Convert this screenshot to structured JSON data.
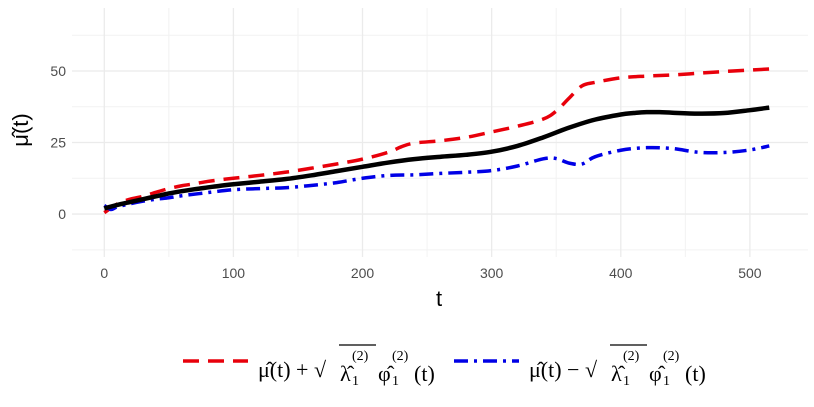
{
  "chart_data": {
    "type": "line",
    "xlabel": "t",
    "ylabel": "μ̂(t)",
    "xlim": [
      -25,
      545
    ],
    "ylim": [
      -15,
      72
    ],
    "x_ticks": [
      0,
      100,
      200,
      300,
      400,
      500
    ],
    "y_ticks": [
      0,
      25,
      50
    ],
    "grid": true,
    "legend_position": "bottom",
    "series": [
      {
        "key": "mean",
        "color": "#000000",
        "style": "solid",
        "x": [
          0,
          10,
          20,
          30,
          40,
          50,
          60,
          70,
          80,
          90,
          100,
          120,
          140,
          160,
          180,
          200,
          220,
          240,
          260,
          280,
          300,
          320,
          340,
          360,
          380,
          400,
          410,
          420,
          430,
          440,
          460,
          480,
          500,
          515
        ],
        "y": [
          2,
          3.2,
          4.2,
          5.2,
          6.2,
          7.2,
          8,
          8.7,
          9.3,
          9.9,
          10.4,
          11.3,
          12.2,
          13.5,
          15,
          16.5,
          18,
          19.2,
          20,
          20.7,
          21.8,
          23.8,
          26.8,
          30.2,
          33,
          34.8,
          35.3,
          35.6,
          35.6,
          35.4,
          35.1,
          35.3,
          36.3,
          37.2
        ]
      },
      {
        "key": "upper",
        "color": "#e8000b",
        "style": "dashed",
        "legend_main": "μ̂(t) + √",
        "legend_lambda": "λ̂",
        "legend_lambda_sub": "1",
        "legend_lambda_sup": "(2)",
        "legend_phi": "φ̂",
        "legend_phi_sub": "1",
        "legend_phi_sup": "(2)",
        "legend_tail": "(t)",
        "x": [
          0,
          10,
          20,
          30,
          40,
          50,
          60,
          70,
          80,
          90,
          100,
          120,
          140,
          160,
          180,
          200,
          220,
          230,
          240,
          260,
          280,
          300,
          320,
          340,
          350,
          360,
          370,
          380,
          400,
          420,
          440,
          460,
          480,
          500,
          515
        ],
        "y": [
          0.5,
          3.5,
          5.2,
          6.2,
          7.6,
          8.9,
          9.9,
          10.6,
          11.4,
          12,
          12.5,
          13.5,
          14.6,
          16,
          17.5,
          19.2,
          21.6,
          23.5,
          24.8,
          25.6,
          26.8,
          28.7,
          30.7,
          33.2,
          36,
          40.5,
          44.8,
          46,
          47.6,
          48.2,
          48.6,
          49.2,
          49.8,
          50.3,
          50.7
        ]
      },
      {
        "key": "lower",
        "color": "#0000e6",
        "style": "dashdot",
        "legend_main": "μ̂(t) − √",
        "legend_lambda": "λ̂",
        "legend_lambda_sub": "1",
        "legend_lambda_sup": "(2)",
        "legend_phi": "φ̂",
        "legend_phi_sub": "1",
        "legend_phi_sup": "(2)",
        "legend_tail": "(t)",
        "x": [
          0,
          5,
          10,
          20,
          30,
          40,
          50,
          60,
          80,
          100,
          120,
          140,
          160,
          180,
          200,
          220,
          240,
          260,
          280,
          300,
          320,
          340,
          350,
          360,
          370,
          380,
          400,
          420,
          440,
          460,
          480,
          500,
          515
        ],
        "y": [
          3,
          1.6,
          2.5,
          3.6,
          4.5,
          5.2,
          5.7,
          6.4,
          7.5,
          8.5,
          8.9,
          9.2,
          10,
          11,
          12.5,
          13.5,
          13.7,
          14.2,
          14.6,
          15.2,
          16.8,
          19.3,
          19.4,
          17.8,
          17.5,
          20,
          22.3,
          23.2,
          22.9,
          21.6,
          21.5,
          22.4,
          23.8
        ]
      }
    ]
  }
}
